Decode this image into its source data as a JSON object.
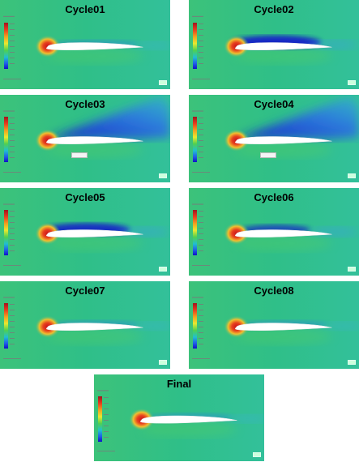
{
  "panels": [
    {
      "id": "cycle01",
      "title": "Cycle01",
      "wake": 0.1,
      "probe": false
    },
    {
      "id": "cycle02",
      "title": "Cycle02",
      "wake": 0.45,
      "probe": false
    },
    {
      "id": "cycle03",
      "title": "Cycle03",
      "wake": 1.0,
      "probe": true
    },
    {
      "id": "cycle04",
      "title": "Cycle04",
      "wake": 1.0,
      "probe": true
    },
    {
      "id": "cycle05",
      "title": "Cycle05",
      "wake": 0.4,
      "probe": false
    },
    {
      "id": "cycle06",
      "title": "Cycle06",
      "wake": 0.2,
      "probe": false
    },
    {
      "id": "cycle07",
      "title": "Cycle07",
      "wake": 0.1,
      "probe": false
    },
    {
      "id": "cycle08",
      "title": "Cycle08",
      "wake": 0.1,
      "probe": false
    },
    {
      "id": "final",
      "title": "Final",
      "wake": 0.1,
      "probe": false
    }
  ],
  "colors": {
    "freestream": "#2fbf88",
    "leading_edge_hot": "#e8401e",
    "suction_low": "#1520c8",
    "airfoil": "#ffffff"
  }
}
